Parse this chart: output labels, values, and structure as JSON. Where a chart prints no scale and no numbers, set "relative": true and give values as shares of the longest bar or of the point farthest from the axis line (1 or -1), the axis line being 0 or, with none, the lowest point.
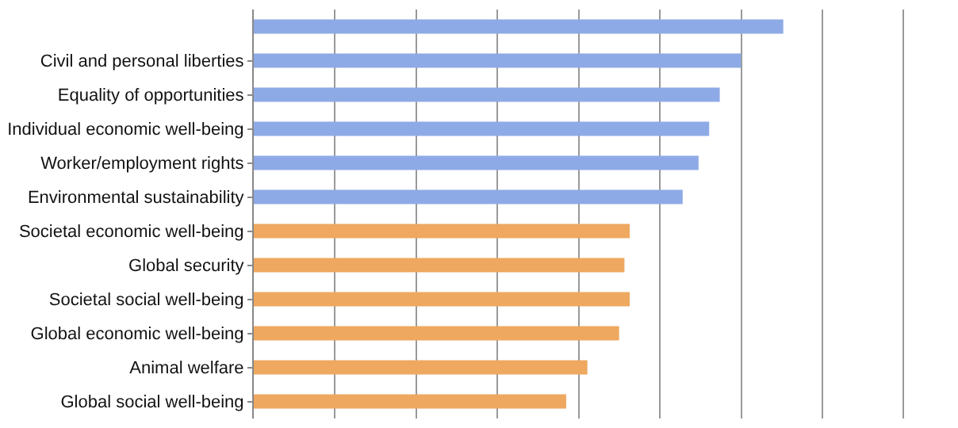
{
  "chart_data": {
    "type": "bar",
    "orientation": "horizontal",
    "relative": true,
    "grid": "x",
    "categories": [
      null,
      "Civil and personal liberties",
      "Equality of opportunities",
      "Individual economic well-being",
      "Worker/employment rights",
      "Environmental sustainability",
      "Societal economic well-being",
      "Global security",
      "Societal social well-being",
      "Global economic well-being",
      "Animal welfare",
      "Global social well-being"
    ],
    "values": [
      1,
      0.92,
      0.88,
      0.86,
      0.84,
      0.81,
      0.71,
      0.7,
      0.71,
      0.69,
      0.63,
      0.59
    ],
    "colors": [
      "#8eaae6",
      "#8eaae6",
      "#8eaae6",
      "#8eaae6",
      "#8eaae6",
      "#8eaae6",
      "#eea860",
      "#eea860",
      "#eea860",
      "#eea860",
      "#eea860",
      "#eea860"
    ]
  }
}
